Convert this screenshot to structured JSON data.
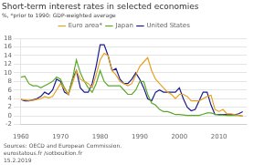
{
  "chart_data": {
    "type": "line",
    "title": "Short-term interest rates in selected economies",
    "ylabel": "%, *prior to 1990: GDP-weighted average",
    "annotations": [
      "Sources: OECD and European Commission.",
      "eurostatous.fr /sotbouition.fr",
      "15.2.2019"
    ],
    "x": [
      1960,
      1961,
      1962,
      1963,
      1964,
      1965,
      1966,
      1967,
      1968,
      1969,
      1970,
      1971,
      1972,
      1973,
      1974,
      1975,
      1976,
      1977,
      1978,
      1979,
      1980,
      1981,
      1982,
      1983,
      1984,
      1985,
      1986,
      1987,
      1988,
      1989,
      1990,
      1991,
      1992,
      1993,
      1994,
      1995,
      1996,
      1997,
      1998,
      1999,
      2000,
      2001,
      2002,
      2003,
      2004,
      2005,
      2006,
      2007,
      2008,
      2009,
      2010,
      2011,
      2012,
      2013,
      2014,
      2015,
      2016
    ],
    "series": [
      {
        "name": "Euro area*",
        "color": "#E8A020",
        "values": [
          3.8,
          3.7,
          3.6,
          3.6,
          3.8,
          4.0,
          4.5,
          4.2,
          4.5,
          6.0,
          7.5,
          6.2,
          5.0,
          7.5,
          10.5,
          8.5,
          8.0,
          7.5,
          6.5,
          9.5,
          13.0,
          14.5,
          14.0,
          10.5,
          9.5,
          8.0,
          7.5,
          7.0,
          7.5,
          9.5,
          11.5,
          12.5,
          13.5,
          10.5,
          8.5,
          7.5,
          6.5,
          5.5,
          5.0,
          4.0,
          5.0,
          5.0,
          4.5,
          3.5,
          3.5,
          3.5,
          4.0,
          4.5,
          4.8,
          1.5,
          1.0,
          1.5,
          0.5,
          0.5,
          0.3,
          0.1,
          -0.1
        ]
      },
      {
        "name": "Japan",
        "color": "#5AAA28",
        "values": [
          9.0,
          9.2,
          7.5,
          7.0,
          7.0,
          6.5,
          7.0,
          7.5,
          8.0,
          9.0,
          8.5,
          6.5,
          5.0,
          8.5,
          13.0,
          10.0,
          8.0,
          6.5,
          5.5,
          7.5,
          10.5,
          8.0,
          7.0,
          7.0,
          7.0,
          7.0,
          6.0,
          5.0,
          5.0,
          6.0,
          8.0,
          8.0,
          5.0,
          3.0,
          2.5,
          1.5,
          1.0,
          1.0,
          0.7,
          0.3,
          0.3,
          0.2,
          0.1,
          0.1,
          0.1,
          0.1,
          0.4,
          0.7,
          0.7,
          0.4,
          0.2,
          0.2,
          0.1,
          0.1,
          0.1,
          0.1,
          0.0
        ]
      },
      {
        "name": "United States",
        "color": "#1A1A8C",
        "values": [
          3.8,
          3.5,
          3.5,
          3.7,
          4.0,
          4.5,
          5.5,
          5.0,
          6.0,
          8.5,
          8.0,
          5.5,
          5.0,
          8.5,
          10.5,
          6.5,
          5.5,
          5.5,
          7.5,
          11.5,
          16.5,
          16.5,
          14.0,
          10.5,
          11.0,
          8.5,
          7.5,
          7.5,
          8.5,
          10.0,
          8.5,
          6.5,
          4.0,
          3.5,
          5.5,
          6.0,
          5.5,
          5.5,
          5.5,
          5.5,
          6.5,
          4.0,
          2.0,
          1.2,
          1.5,
          3.5,
          5.5,
          5.5,
          2.5,
          0.3,
          0.3,
          0.3,
          0.3,
          0.3,
          0.3,
          0.5,
          1.0
        ]
      }
    ],
    "xlim": [
      1960,
      2017
    ],
    "xticks": [
      1960,
      1970,
      1980,
      1990,
      2000,
      2010
    ],
    "ylim": [
      -2,
      18
    ],
    "yticks": [
      -2,
      0,
      2,
      4,
      6,
      8,
      10,
      12,
      14,
      16,
      18
    ],
    "grid": "y",
    "legend": "top"
  }
}
